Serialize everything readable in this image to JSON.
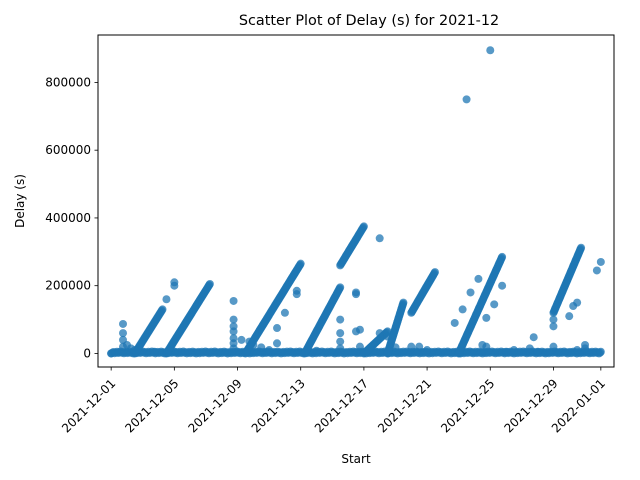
{
  "chart_data": {
    "type": "scatter",
    "title": "Scatter Plot of Delay (s) for 2021-12",
    "xlabel": "Start",
    "ylabel": "Delay (s)",
    "x_type": "date",
    "xlim": [
      "2021-11-30T04:00",
      "2022-01-01T20:00"
    ],
    "ylim": [
      -40000,
      940000
    ],
    "x_ticks": [
      "2021-12-01",
      "2021-12-05",
      "2021-12-09",
      "2021-12-13",
      "2021-12-17",
      "2021-12-21",
      "2021-12-25",
      "2021-12-29",
      "2022-01-01"
    ],
    "y_ticks": [
      0,
      200000,
      400000,
      600000,
      800000
    ],
    "y_tick_labels": [
      "0",
      "200000",
      "400000",
      "600000",
      "800000"
    ],
    "x_tick_rotation_deg": 45,
    "grid": false,
    "marker_color": "#1f77b4",
    "marker_alpha": 0.75,
    "series": [
      {
        "ramps": [
          {
            "from": [
              "2021-12-02T12:00",
              0
            ],
            "to": [
              "2021-12-04T06:00",
              130000
            ]
          },
          {
            "from": [
              "2021-12-04T12:00",
              0
            ],
            "to": [
              "2021-12-07T06:00",
              205000
            ]
          },
          {
            "from": [
              "2021-12-09T12:00",
              0
            ],
            "to": [
              "2021-12-13T00:00",
              265000
            ]
          },
          {
            "from": [
              "2021-12-13T06:00",
              0
            ],
            "to": [
              "2021-12-15T12:00",
              195000
            ]
          },
          {
            "from": [
              "2021-12-15T12:00",
              260000
            ],
            "to": [
              "2021-12-17T00:00",
              375000
            ]
          },
          {
            "from": [
              "2021-12-17T00:00",
              0
            ],
            "to": [
              "2021-12-18T12:00",
              65000
            ]
          },
          {
            "from": [
              "2021-12-18T12:00",
              0
            ],
            "to": [
              "2021-12-19T12:00",
              150000
            ]
          },
          {
            "from": [
              "2021-12-20T00:00",
              120000
            ],
            "to": [
              "2021-12-21T12:00",
              240000
            ]
          },
          {
            "from": [
              "2021-12-23T00:00",
              0
            ],
            "to": [
              "2021-12-25T18:00",
              285000
            ]
          },
          {
            "from": [
              "2021-12-29T00:00",
              120000
            ],
            "to": [
              "2021-12-30T18:00",
              312000
            ]
          }
        ],
        "points": [
          [
            "2021-12-01T00:00",
            0
          ],
          [
            "2021-12-01T18:00",
            87000
          ],
          [
            "2021-12-01T18:00",
            60000
          ],
          [
            "2021-12-01T18:00",
            40000
          ],
          [
            "2021-12-01T18:00",
            20000
          ],
          [
            "2021-12-02T00:00",
            25000
          ],
          [
            "2021-12-02T06:00",
            15000
          ],
          [
            "2021-12-02T12:00",
            10000
          ],
          [
            "2021-12-03T18:00",
            5000
          ],
          [
            "2021-12-04T12:00",
            160000
          ],
          [
            "2021-12-05T00:00",
            210000
          ],
          [
            "2021-12-05T00:00",
            200000
          ],
          [
            "2021-12-08T18:00",
            155000
          ],
          [
            "2021-12-08T18:00",
            100000
          ],
          [
            "2021-12-08T18:00",
            80000
          ],
          [
            "2021-12-08T18:00",
            65000
          ],
          [
            "2021-12-08T18:00",
            45000
          ],
          [
            "2021-12-08T18:00",
            30000
          ],
          [
            "2021-12-08T18:00",
            15000
          ],
          [
            "2021-12-09T06:00",
            40000
          ],
          [
            "2021-12-09T18:00",
            35000
          ],
          [
            "2021-12-10T00:00",
            25000
          ],
          [
            "2021-12-10T12:00",
            18000
          ],
          [
            "2021-12-11T00:00",
            10000
          ],
          [
            "2021-12-11T12:00",
            75000
          ],
          [
            "2021-12-11T12:00",
            30000
          ],
          [
            "2021-12-12T00:00",
            120000
          ],
          [
            "2021-12-12T18:00",
            185000
          ],
          [
            "2021-12-12T18:00",
            175000
          ],
          [
            "2021-12-14T00:00",
            8000
          ],
          [
            "2021-12-15T12:00",
            100000
          ],
          [
            "2021-12-15T12:00",
            60000
          ],
          [
            "2021-12-15T12:00",
            35000
          ],
          [
            "2021-12-15T12:00",
            15000
          ],
          [
            "2021-12-16T12:00",
            180000
          ],
          [
            "2021-12-16T12:00",
            175000
          ],
          [
            "2021-12-16T12:00",
            65000
          ],
          [
            "2021-12-16T18:00",
            70000
          ],
          [
            "2021-12-16T18:00",
            20000
          ],
          [
            "2021-12-18T00:00",
            340000
          ],
          [
            "2021-12-18T00:00",
            60000
          ],
          [
            "2021-12-18T12:00",
            50000
          ],
          [
            "2021-12-19T00:00",
            18000
          ],
          [
            "2021-12-20T00:00",
            20000
          ],
          [
            "2021-12-20T12:00",
            20000
          ],
          [
            "2021-12-21T00:00",
            10000
          ],
          [
            "2021-12-22T18:00",
            90000
          ],
          [
            "2021-12-23T06:00",
            130000
          ],
          [
            "2021-12-23T12:00",
            750000
          ],
          [
            "2021-12-23T18:00",
            180000
          ],
          [
            "2021-12-24T06:00",
            220000
          ],
          [
            "2021-12-24T12:00",
            25000
          ],
          [
            "2021-12-24T18:00",
            105000
          ],
          [
            "2021-12-24T18:00",
            20000
          ],
          [
            "2021-12-25T00:00",
            895000
          ],
          [
            "2021-12-25T06:00",
            145000
          ],
          [
            "2021-12-25T18:00",
            200000
          ],
          [
            "2021-12-26T00:00",
            5000
          ],
          [
            "2021-12-26T12:00",
            10000
          ],
          [
            "2021-12-27T12:00",
            15000
          ],
          [
            "2021-12-27T18:00",
            48000
          ],
          [
            "2021-12-28T00:00",
            5000
          ],
          [
            "2021-12-29T00:00",
            100000
          ],
          [
            "2021-12-29T00:00",
            80000
          ],
          [
            "2021-12-29T00:00",
            20000
          ],
          [
            "2021-12-30T00:00",
            110000
          ],
          [
            "2021-12-30T06:00",
            140000
          ],
          [
            "2021-12-30T12:00",
            150000
          ],
          [
            "2021-12-30T12:00",
            10000
          ],
          [
            "2021-12-31T00:00",
            25000
          ],
          [
            "2021-12-31T00:00",
            15000
          ],
          [
            "2021-12-31T18:00",
            245000
          ],
          [
            "2022-01-01T00:00",
            270000
          ],
          [
            "2022-01-01T00:00",
            5000
          ]
        ],
        "baseline_clusters": [
          {
            "from": "2021-12-01T00:00",
            "to": "2021-12-31T23:00",
            "y_max": 6000
          }
        ]
      }
    ]
  }
}
